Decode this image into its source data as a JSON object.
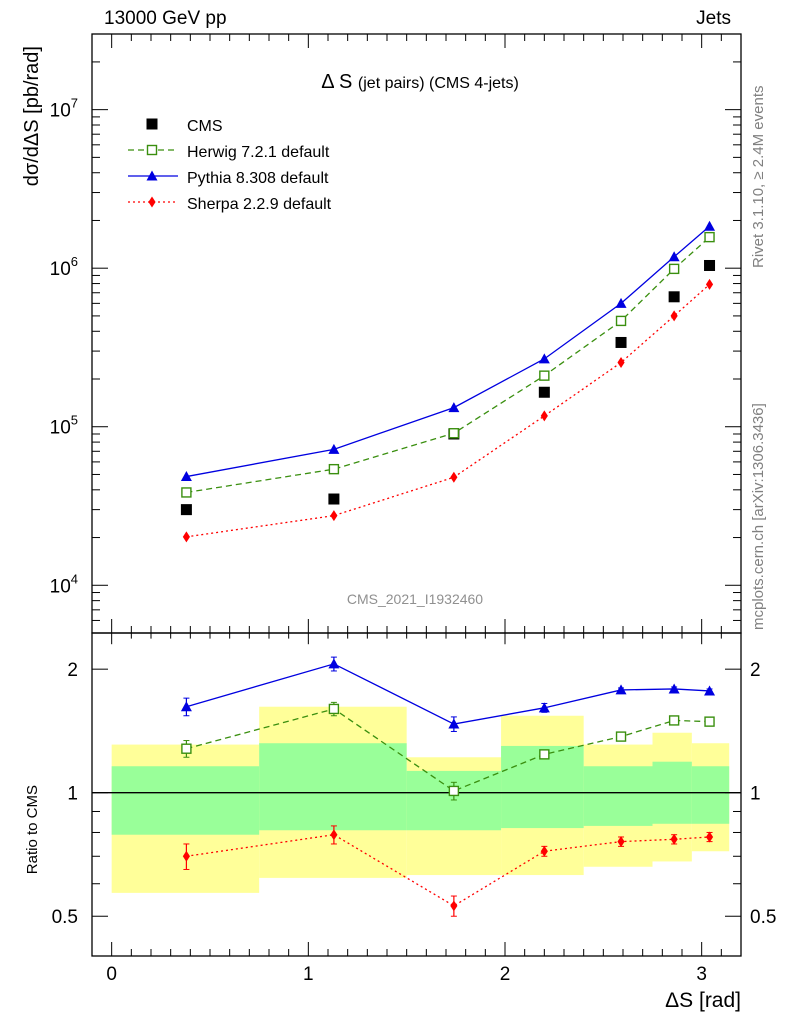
{
  "header": {
    "left": "13000 GeV pp",
    "right": "Jets"
  },
  "side_labels": {
    "top": "Rivet 3.1.10, ≥ 2.4M events",
    "bottom": "mcplots.cern.ch [arXiv:1306.3436]"
  },
  "chart_data": {
    "type": "scatter",
    "title": "Δ S",
    "title_sub": "(jet pairs) (CMS 4-jets)",
    "watermark": "CMS_2021_I1932460",
    "xlabel": "ΔS [rad]",
    "ylabel": "dσ/dΔS [pb/rad]",
    "ratio_ylabel": "Ratio to CMS",
    "xlim": [
      -0.1,
      3.2
    ],
    "ylim": [
      5000,
      30000000
    ],
    "ylog": true,
    "ratio_ylim": [
      0.4,
      2.45
    ],
    "ratio_ylog": true,
    "x_ticks": [
      0,
      1,
      2,
      3
    ],
    "y_ticks": [
      {
        "value": 10000,
        "mantissa": "10",
        "exp": "4"
      },
      {
        "value": 100000,
        "mantissa": "10",
        "exp": "5"
      },
      {
        "value": 1000000,
        "mantissa": "10",
        "exp": "6"
      },
      {
        "value": 10000000,
        "mantissa": "10",
        "exp": "7"
      }
    ],
    "ratio_ticks": [
      {
        "value": 0.5,
        "label": "0.5"
      },
      {
        "value": 1,
        "label": "1"
      },
      {
        "value": 2,
        "label": "2"
      }
    ],
    "x": [
      0.38,
      1.13,
      1.74,
      2.2,
      2.59,
      2.86,
      3.04
    ],
    "bin_edges": [
      0,
      0.75,
      1.5,
      1.98,
      2.4,
      2.75,
      2.95,
      3.14
    ],
    "series": [
      {
        "name": "CMS",
        "color": "#000000",
        "marker": "square",
        "values": [
          30000,
          35000,
          90000,
          165000,
          340000,
          660000,
          1040000
        ]
      },
      {
        "name": "Herwig 7.2.1 default",
        "color": "#3a8f0f",
        "marker": "open-square",
        "dash": "6,4",
        "values": [
          38500,
          54000,
          91000,
          210000,
          465000,
          990000,
          1570000
        ],
        "ratio": [
          1.28,
          1.6,
          1.01,
          1.24,
          1.37,
          1.5,
          1.49
        ],
        "ratio_err": [
          0.06,
          0.06,
          0.05,
          0.03,
          0.02,
          0.02,
          0.02
        ]
      },
      {
        "name": "Pythia 8.308 default",
        "color": "#0000e0",
        "marker": "triangle",
        "dash": "",
        "values": [
          48500,
          72000,
          132000,
          268000,
          600000,
          1180000,
          1840000
        ],
        "ratio": [
          1.62,
          2.06,
          1.47,
          1.61,
          1.78,
          1.79,
          1.77
        ],
        "ratio_err": [
          0.08,
          0.08,
          0.06,
          0.04,
          0.02,
          0.02,
          0.02
        ]
      },
      {
        "name": "Sherpa 2.2.9 default",
        "color": "#ff0000",
        "marker": "diamond",
        "dash": "2,3",
        "values": [
          20200,
          27500,
          48000,
          117000,
          254000,
          500000,
          790000
        ],
        "ratio": [
          0.7,
          0.79,
          0.53,
          0.72,
          0.76,
          0.77,
          0.78
        ],
        "ratio_err": [
          0.05,
          0.04,
          0.03,
          0.02,
          0.02,
          0.02,
          0.02
        ]
      }
    ],
    "bands": {
      "green": [
        [
          0.79,
          1.16
        ],
        [
          0.81,
          1.32
        ],
        [
          0.81,
          1.13
        ],
        [
          0.82,
          1.3
        ],
        [
          0.83,
          1.16
        ],
        [
          0.84,
          1.19
        ],
        [
          0.84,
          1.16
        ]
      ],
      "yellow": [
        [
          0.57,
          1.31
        ],
        [
          0.62,
          1.62
        ],
        [
          0.63,
          1.22
        ],
        [
          0.63,
          1.54
        ],
        [
          0.66,
          1.31
        ],
        [
          0.68,
          1.4
        ],
        [
          0.72,
          1.32
        ]
      ]
    },
    "legend_position": "top-left"
  }
}
